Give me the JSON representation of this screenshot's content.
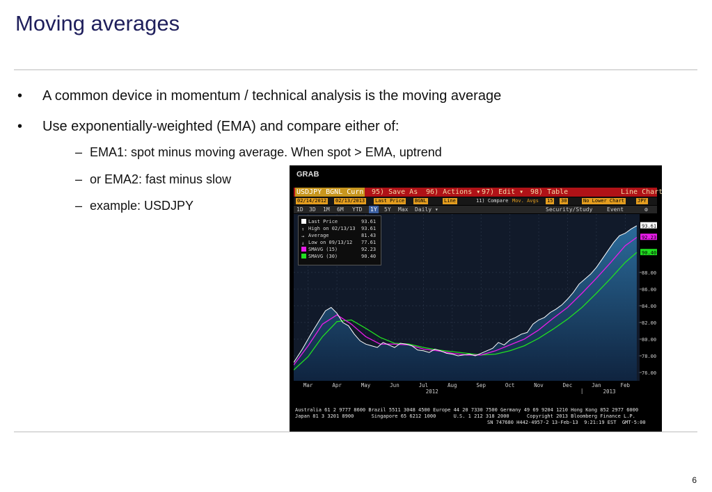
{
  "slide": {
    "title": "Moving averages",
    "page_number": "6",
    "bullets": [
      "A common device in momentum / technical analysis is the moving average",
      "Use exponentially-weighted (EMA) and compare either of:"
    ],
    "sub_bullets": [
      "EMA1: spot minus moving average. When spot > EMA, uptrend",
      "or EMA2: fast minus slow",
      "example: USDJPY"
    ],
    "bullet_marker": "•",
    "sub_marker": "–"
  },
  "bloomberg": {
    "grab_label": "GRAB",
    "toolbar": {
      "ticker": "USDJPY BGNL Curn",
      "save": "95) Save As",
      "actions": "96) Actions ▾",
      "edit": "97) Edit ▾",
      "table": "98) Table",
      "chart_type": "Line Chart"
    },
    "settings": {
      "start_date": "02/14/2012",
      "end_date": "02/13/2013",
      "field": "Last Price",
      "source": "BGNL",
      "style": "Line",
      "compare": "11) Compare",
      "mov_avgs_label": "Mov. Avgs",
      "ma1": "15",
      "ma2": "30",
      "lower": "No Lower Chart",
      "currency": "JPY"
    },
    "periods": [
      "1D",
      "3D",
      "1M",
      "6M",
      "YTD",
      "1Y",
      "5Y",
      "Max",
      "Daily ▾"
    ],
    "selected_period": "1Y",
    "tools": [
      "Security/Study",
      "Event"
    ],
    "legend": [
      {
        "label": "Last Price",
        "value": "93.61",
        "color": "#ffffff"
      },
      {
        "label": "High on 02/13/13",
        "value": "93.61",
        "color": ""
      },
      {
        "label": "Average",
        "value": "81.43",
        "color": ""
      },
      {
        "label": "Low on 09/13/12",
        "value": "77.61",
        "color": ""
      },
      {
        "label": "SMAVG (15)",
        "value": "92.23",
        "color": "#e81ce8"
      },
      {
        "label": "SMAVG (30)",
        "value": "90.40",
        "color": "#21e021"
      }
    ],
    "footer": [
      "Australia 61 2 9777 8600 Brazil 5511 3048 4500 Europe 44 20 7330 7500 Germany 49 69 9204 1210 Hong Kong 852 2977 6000",
      "Japan 81 3 3201 8900      Singapore 65 6212 1000      U.S. 1 212 318 2000      Copyright 2013 Bloomberg Finance L.P.",
      "SN 747680 H442-4957-2 13-Feb-13  9:21:19 EST  GMT-5:00"
    ]
  },
  "chart_data": {
    "type": "line",
    "title": "USDJPY BGNL Curncy",
    "months": [
      "Mar",
      "Apr",
      "May",
      "Jun",
      "Jul",
      "Aug",
      "Sep",
      "Oct",
      "Nov",
      "Dec",
      "Jan",
      "Feb"
    ],
    "years": [
      "2012",
      "2013"
    ],
    "y_ticks": [
      "76.00",
      "78.00",
      "80.00",
      "82.00",
      "84.00",
      "86.00",
      "88.00",
      "90.40",
      "92.23",
      "93.61"
    ],
    "ylim": [
      75,
      95
    ],
    "xlim": [
      0,
      12
    ],
    "colors": {
      "price": "#ffffff",
      "sma15": "#e81ce8",
      "sma30": "#21e021"
    },
    "series": [
      {
        "name": "Last Price",
        "x": [
          0.0,
          0.3,
          0.6,
          0.9,
          1.1,
          1.3,
          1.5,
          1.7,
          1.9,
          2.1,
          2.3,
          2.5,
          2.7,
          2.9,
          3.1,
          3.3,
          3.5,
          3.7,
          3.9,
          4.1,
          4.3,
          4.5,
          4.7,
          4.9,
          5.1,
          5.3,
          5.5,
          5.7,
          5.9,
          6.1,
          6.3,
          6.5,
          6.7,
          6.9,
          7.1,
          7.3,
          7.5,
          7.7,
          7.9,
          8.1,
          8.3,
          8.5,
          8.7,
          8.9,
          9.1,
          9.3,
          9.5,
          9.7,
          9.9,
          10.1,
          10.3,
          10.5,
          10.7,
          10.9,
          11.1,
          11.3,
          11.5,
          11.7,
          11.9
        ],
        "values": [
          77.2,
          78.8,
          80.6,
          82.3,
          83.4,
          83.8,
          83.1,
          82.0,
          81.6,
          80.6,
          79.8,
          79.4,
          79.2,
          79.0,
          79.6,
          79.3,
          79.0,
          79.5,
          79.4,
          79.2,
          78.7,
          78.6,
          78.4,
          78.8,
          78.6,
          78.3,
          78.2,
          78.0,
          78.1,
          78.2,
          78.0,
          78.3,
          78.6,
          78.9,
          79.6,
          79.3,
          79.9,
          80.2,
          80.6,
          80.8,
          81.8,
          82.3,
          82.6,
          83.2,
          83.6,
          84.1,
          84.8,
          85.6,
          86.6,
          87.2,
          87.8,
          88.6,
          89.6,
          90.6,
          91.6,
          92.4,
          92.7,
          93.2,
          93.6
        ]
      },
      {
        "name": "SMAVG (15)",
        "x": [
          0.0,
          0.5,
          1.0,
          1.5,
          2.0,
          2.5,
          3.0,
          3.5,
          4.0,
          4.5,
          5.0,
          5.5,
          6.0,
          6.5,
          7.0,
          7.5,
          8.0,
          8.5,
          9.0,
          9.5,
          10.0,
          10.5,
          11.0,
          11.5,
          11.9
        ],
        "values": [
          76.9,
          79.2,
          81.8,
          82.9,
          81.8,
          80.3,
          79.4,
          79.4,
          79.3,
          78.8,
          78.6,
          78.3,
          78.1,
          78.1,
          78.6,
          79.3,
          80.0,
          81.1,
          82.5,
          83.8,
          85.5,
          87.3,
          89.2,
          91.2,
          92.2
        ]
      },
      {
        "name": "SMAVG (30)",
        "x": [
          0.0,
          0.5,
          1.0,
          1.5,
          2.0,
          2.5,
          3.0,
          3.5,
          4.0,
          4.5,
          5.0,
          5.5,
          6.0,
          6.5,
          7.0,
          7.5,
          8.0,
          8.5,
          9.0,
          9.5,
          10.0,
          10.5,
          11.0,
          11.5,
          11.9
        ],
        "values": [
          76.3,
          77.9,
          80.3,
          82.1,
          82.3,
          81.3,
          80.2,
          79.5,
          79.4,
          79.0,
          78.7,
          78.5,
          78.3,
          78.1,
          78.2,
          78.6,
          79.2,
          80.1,
          81.2,
          82.4,
          83.8,
          85.5,
          87.3,
          89.2,
          90.4
        ]
      }
    ]
  }
}
